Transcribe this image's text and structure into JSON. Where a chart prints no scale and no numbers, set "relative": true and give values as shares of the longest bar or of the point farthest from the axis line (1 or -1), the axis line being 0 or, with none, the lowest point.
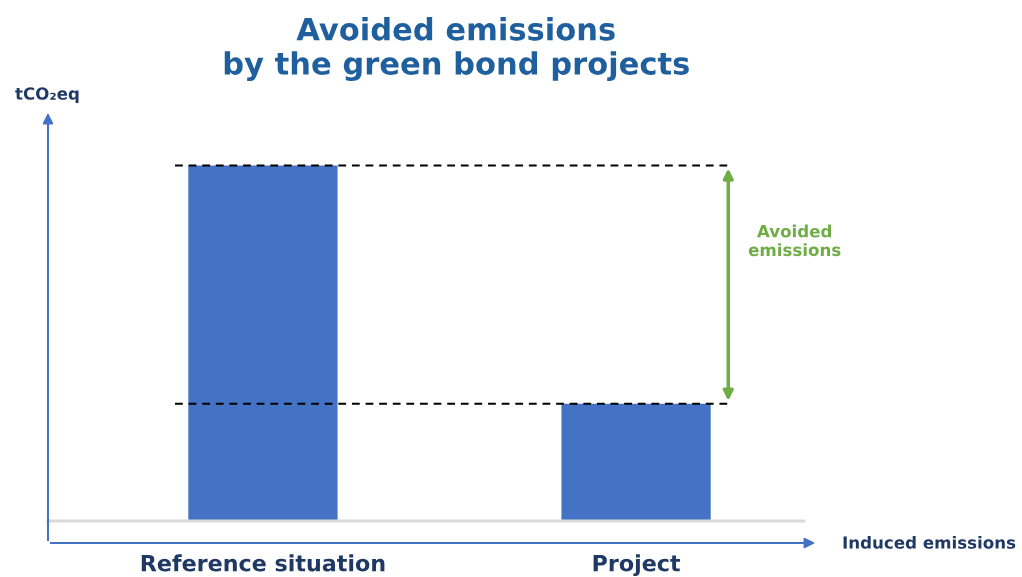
{
  "chart_data": {
    "type": "bar",
    "title": "Avoided emissions\nby the green bond projects",
    "categories": [
      "Reference situation",
      "Project"
    ],
    "values": [
      1,
      0.33
    ],
    "color": "#4472c4",
    "relative": true,
    "grid": false,
    "ref_lines": [
      {
        "axis": "y",
        "value": 1,
        "color": "#000000",
        "line_style": "dashed"
      },
      {
        "axis": "y",
        "value": 0.33,
        "color": "#000000",
        "line_style": "dashed"
      }
    ],
    "annotations": [
      "Avoided\nemissions",
      "tCO₂eq",
      "Induced emissions"
    ]
  }
}
